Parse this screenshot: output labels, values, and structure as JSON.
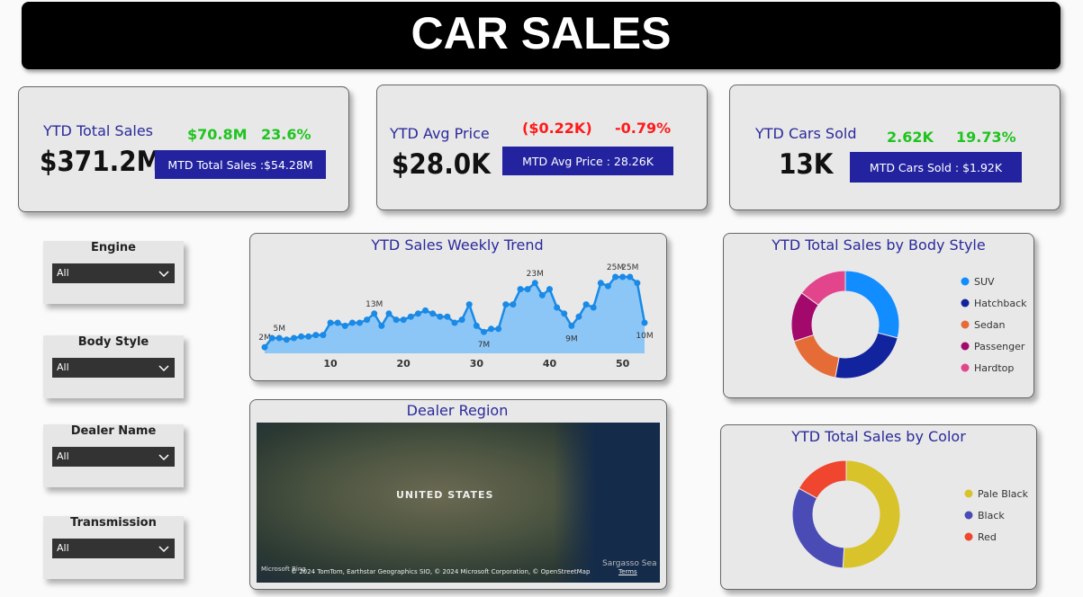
{
  "header": {
    "title": "CAR SALES"
  },
  "kpis": [
    {
      "title": "YTD Total Sales",
      "value": "$371.2M",
      "change_abs": "$70.8M",
      "change_pct": "23.6%",
      "change_color": "#1fc41f",
      "mtd": "MTD Total Sales :$54.28M"
    },
    {
      "title": "YTD Avg Price",
      "value": "$28.0K",
      "change_abs": "($0.22K)",
      "change_pct": "-0.79%",
      "change_color": "#ff1a1a",
      "mtd": "MTD Avg Price : 28.26K"
    },
    {
      "title": "YTD Cars Sold",
      "value": "13K",
      "change_abs": "2.62K",
      "change_pct": "19.73%",
      "change_color": "#1fc41f",
      "mtd": "MTD Cars Sold : $1.92K"
    }
  ],
  "slicers": [
    {
      "label": "Engine",
      "selected": "All"
    },
    {
      "label": "Body Style",
      "selected": "All"
    },
    {
      "label": "Dealer Name",
      "selected": "All"
    },
    {
      "label": "Transmission",
      "selected": "All"
    }
  ],
  "chart_data": [
    {
      "type": "line",
      "title": "YTD Sales Weekly Trend",
      "color": "#1a8ae6",
      "area_color": "#8cc6f7",
      "x": [
        1,
        2,
        3,
        4,
        5,
        6,
        7,
        8,
        9,
        10,
        11,
        12,
        13,
        14,
        15,
        16,
        17,
        18,
        19,
        20,
        21,
        22,
        23,
        24,
        25,
        26,
        27,
        28,
        29,
        30,
        31,
        32,
        33,
        34,
        35,
        36,
        37,
        38,
        39,
        40,
        41,
        42,
        43,
        44,
        45,
        46,
        47,
        48,
        49,
        50,
        51,
        52,
        53
      ],
      "values": [
        2,
        5,
        5,
        4.5,
        5,
        5.5,
        5.5,
        6,
        6,
        10,
        10,
        9,
        10,
        10,
        11,
        13,
        9,
        13,
        11,
        11,
        12,
        13,
        14,
        13,
        12,
        12,
        10,
        11,
        16,
        9,
        7,
        8,
        8,
        16,
        16,
        21,
        21,
        23,
        19,
        21,
        15,
        13,
        9,
        12,
        16,
        15,
        23,
        22,
        25,
        25,
        25,
        23,
        10
      ],
      "value_labels": [
        "2M",
        null,
        "5M",
        null,
        null,
        null,
        null,
        null,
        null,
        null,
        null,
        null,
        null,
        null,
        null,
        "13M",
        null,
        null,
        null,
        null,
        null,
        null,
        null,
        null,
        null,
        null,
        null,
        null,
        null,
        null,
        "7M",
        null,
        null,
        null,
        null,
        null,
        null,
        "23M",
        null,
        null,
        null,
        null,
        "9M",
        null,
        null,
        null,
        null,
        null,
        "25M",
        null,
        "25M",
        null,
        "10M"
      ],
      "xlim": [
        1,
        53
      ],
      "xticks": [
        10,
        20,
        30,
        40,
        50
      ]
    },
    {
      "type": "donut",
      "title": "YTD Total Sales by Body Style",
      "categories": [
        "SUV",
        "Hatchback",
        "Sedan",
        "Passenger",
        "Hardtop"
      ],
      "values": [
        29,
        24,
        17,
        15,
        15
      ],
      "colors": [
        "#118dff",
        "#12239e",
        "#e66c37",
        "#a3086b",
        "#e3458c"
      ]
    },
    {
      "type": "donut",
      "title": "YTD Total Sales by Color",
      "categories": [
        "Pale Black",
        "Black",
        "Red"
      ],
      "values": [
        51,
        32,
        17
      ],
      "colors": [
        "#d8c32b",
        "#4b4bb5",
        "#f0452e"
      ]
    }
  ],
  "map": {
    "title": "Dealer Region",
    "country": "UNITED STATES",
    "sea": "Sargasso Sea",
    "brand": "Microsoft Bing",
    "attribution": "© 2024 TomTom, Earthstar Geographics SIO, © 2024 Microsoft Corporation, © OpenStreetMap",
    "terms": "Terms"
  }
}
